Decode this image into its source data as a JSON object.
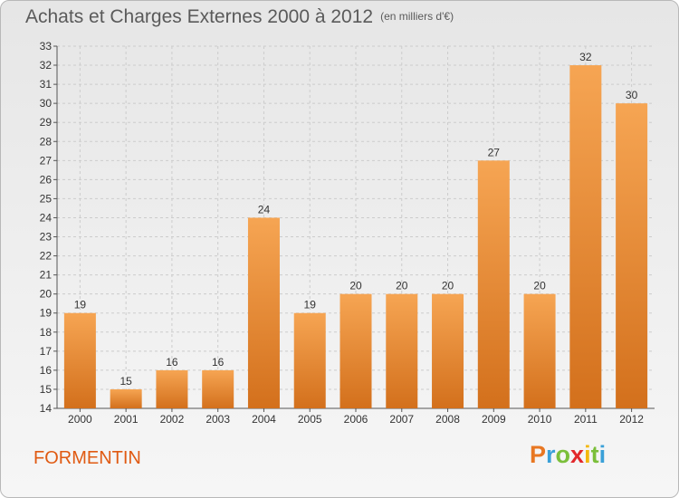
{
  "header": {
    "title": "Achats et Charges Externes 2000 à 2012",
    "subtitle": "(en milliers d'€)"
  },
  "commune": "FORMENTIN",
  "logo": {
    "letters": [
      "P",
      "r",
      "o",
      "x",
      "i",
      "t",
      "i"
    ],
    "colors": [
      "#e87722",
      "#3aa0d8",
      "#7bbf3a",
      "#e2272b",
      "#f3b80d",
      "#7bbf3a",
      "#3aa0d8"
    ]
  },
  "colors": {
    "bar_light": "#f6a553",
    "bar_dark": "#d3701c",
    "grid": "#cccccc",
    "title": "#5a5a5a",
    "commune": "#e05a12"
  },
  "chart_data": {
    "type": "bar",
    "categories": [
      "2000",
      "2001",
      "2002",
      "2003",
      "2004",
      "2005",
      "2006",
      "2007",
      "2008",
      "2009",
      "2010",
      "2011",
      "2012"
    ],
    "values": [
      19,
      15,
      16,
      16,
      24,
      19,
      20,
      20,
      20,
      27,
      20,
      32,
      30
    ],
    "title": "Achats et Charges Externes 2000 à 2012",
    "xlabel": "",
    "ylabel": "",
    "ylim": [
      14,
      33
    ],
    "yticks": [
      14,
      15,
      16,
      17,
      18,
      19,
      20,
      21,
      22,
      23,
      24,
      25,
      26,
      27,
      28,
      29,
      30,
      31,
      32,
      33
    ],
    "grid": true,
    "legend": "none"
  }
}
